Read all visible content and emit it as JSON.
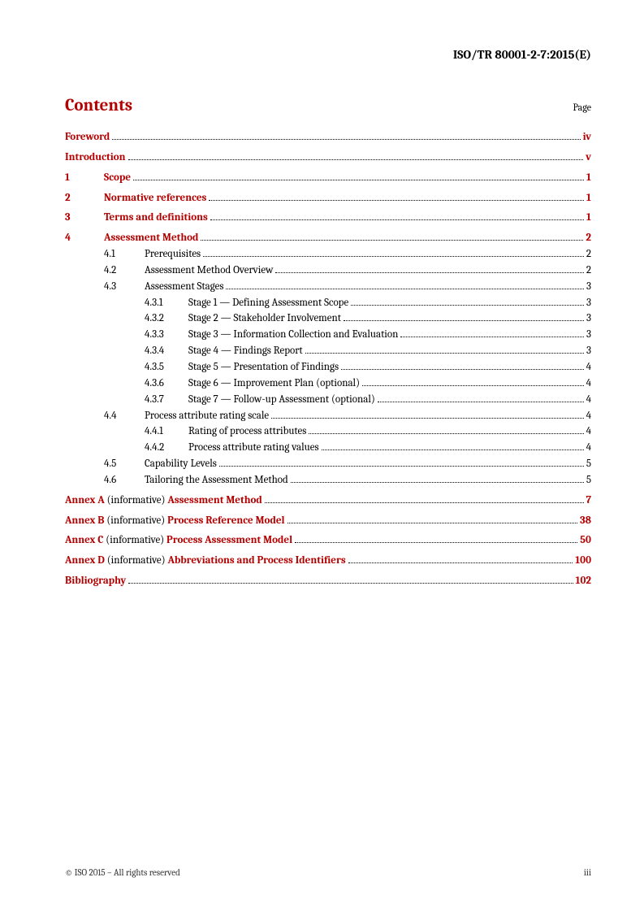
{
  "header": {
    "doc_id": "ISO/TR 80001-2-7:2015(E)"
  },
  "contents": {
    "title": "Contents",
    "page_label": "Page"
  },
  "toc": {
    "foreword": {
      "label": "Foreword",
      "page": "iv"
    },
    "introduction": {
      "label": "Introduction",
      "page": "v"
    },
    "s1": {
      "num": "1",
      "label": "Scope",
      "page": "1"
    },
    "s2": {
      "num": "2",
      "label": "Normative references",
      "page": "1"
    },
    "s3": {
      "num": "3",
      "label": "Terms and definitions",
      "page": "1"
    },
    "s4": {
      "num": "4",
      "label": "Assessment Method",
      "page": "2"
    },
    "s4_1": {
      "num": "4.1",
      "label": "Prerequisites",
      "page": "2"
    },
    "s4_2": {
      "num": "4.2",
      "label": "Assessment Method Overview",
      "page": "2"
    },
    "s4_3": {
      "num": "4.3",
      "label": "Assessment Stages",
      "page": "3"
    },
    "s4_3_1": {
      "num": "4.3.1",
      "label": "Stage 1 — Defining Assessment Scope",
      "page": "3"
    },
    "s4_3_2": {
      "num": "4.3.2",
      "label": "Stage 2 — Stakeholder Involvement",
      "page": "3"
    },
    "s4_3_3": {
      "num": "4.3.3",
      "label": "Stage 3 — Information Collection and Evaluation",
      "page": "3"
    },
    "s4_3_4": {
      "num": "4.3.4",
      "label": "Stage 4 — Findings Report",
      "page": "3"
    },
    "s4_3_5": {
      "num": "4.3.5",
      "label": "Stage 5 — Presentation of Findings",
      "page": "4"
    },
    "s4_3_6": {
      "num": "4.3.6",
      "label": "Stage 6 — Improvement Plan (optional)",
      "page": "4"
    },
    "s4_3_7": {
      "num": "4.3.7",
      "label": "Stage 7 — Follow-up Assessment (optional)",
      "page": "4"
    },
    "s4_4": {
      "num": "4.4",
      "label": "Process attribute rating scale",
      "page": "4"
    },
    "s4_4_1": {
      "num": "4.4.1",
      "label": "Rating of process attributes",
      "page": "4"
    },
    "s4_4_2": {
      "num": "4.4.2",
      "label": "Process attribute rating values",
      "page": "4"
    },
    "s4_5": {
      "num": "4.5",
      "label": "Capability Levels",
      "page": "5"
    },
    "s4_6": {
      "num": "4.6",
      "label": "Tailoring the Assessment Method",
      "page": "5"
    },
    "annexA": {
      "prefix": "Annex A",
      "note": " (informative) ",
      "title": "Assessment Method",
      "page": "7"
    },
    "annexB": {
      "prefix": "Annex B",
      "note": " (informative) ",
      "title": "Process Reference Model",
      "page": "38"
    },
    "annexC": {
      "prefix": "Annex C",
      "note": " (informative) ",
      "title": "Process Assessment Model",
      "page": "50"
    },
    "annexD": {
      "prefix": "Annex D",
      "note": " (informative) ",
      "title": "Abbreviations and Process Identifiers",
      "page": "100"
    },
    "bibliography": {
      "label": "Bibliography",
      "page": "102"
    }
  },
  "footer": {
    "copyright": "© ISO 2015 – All rights reserved",
    "pagenum": "iii"
  },
  "colors": {
    "accent": "#b30000",
    "text": "#000000",
    "bg": "#ffffff"
  }
}
